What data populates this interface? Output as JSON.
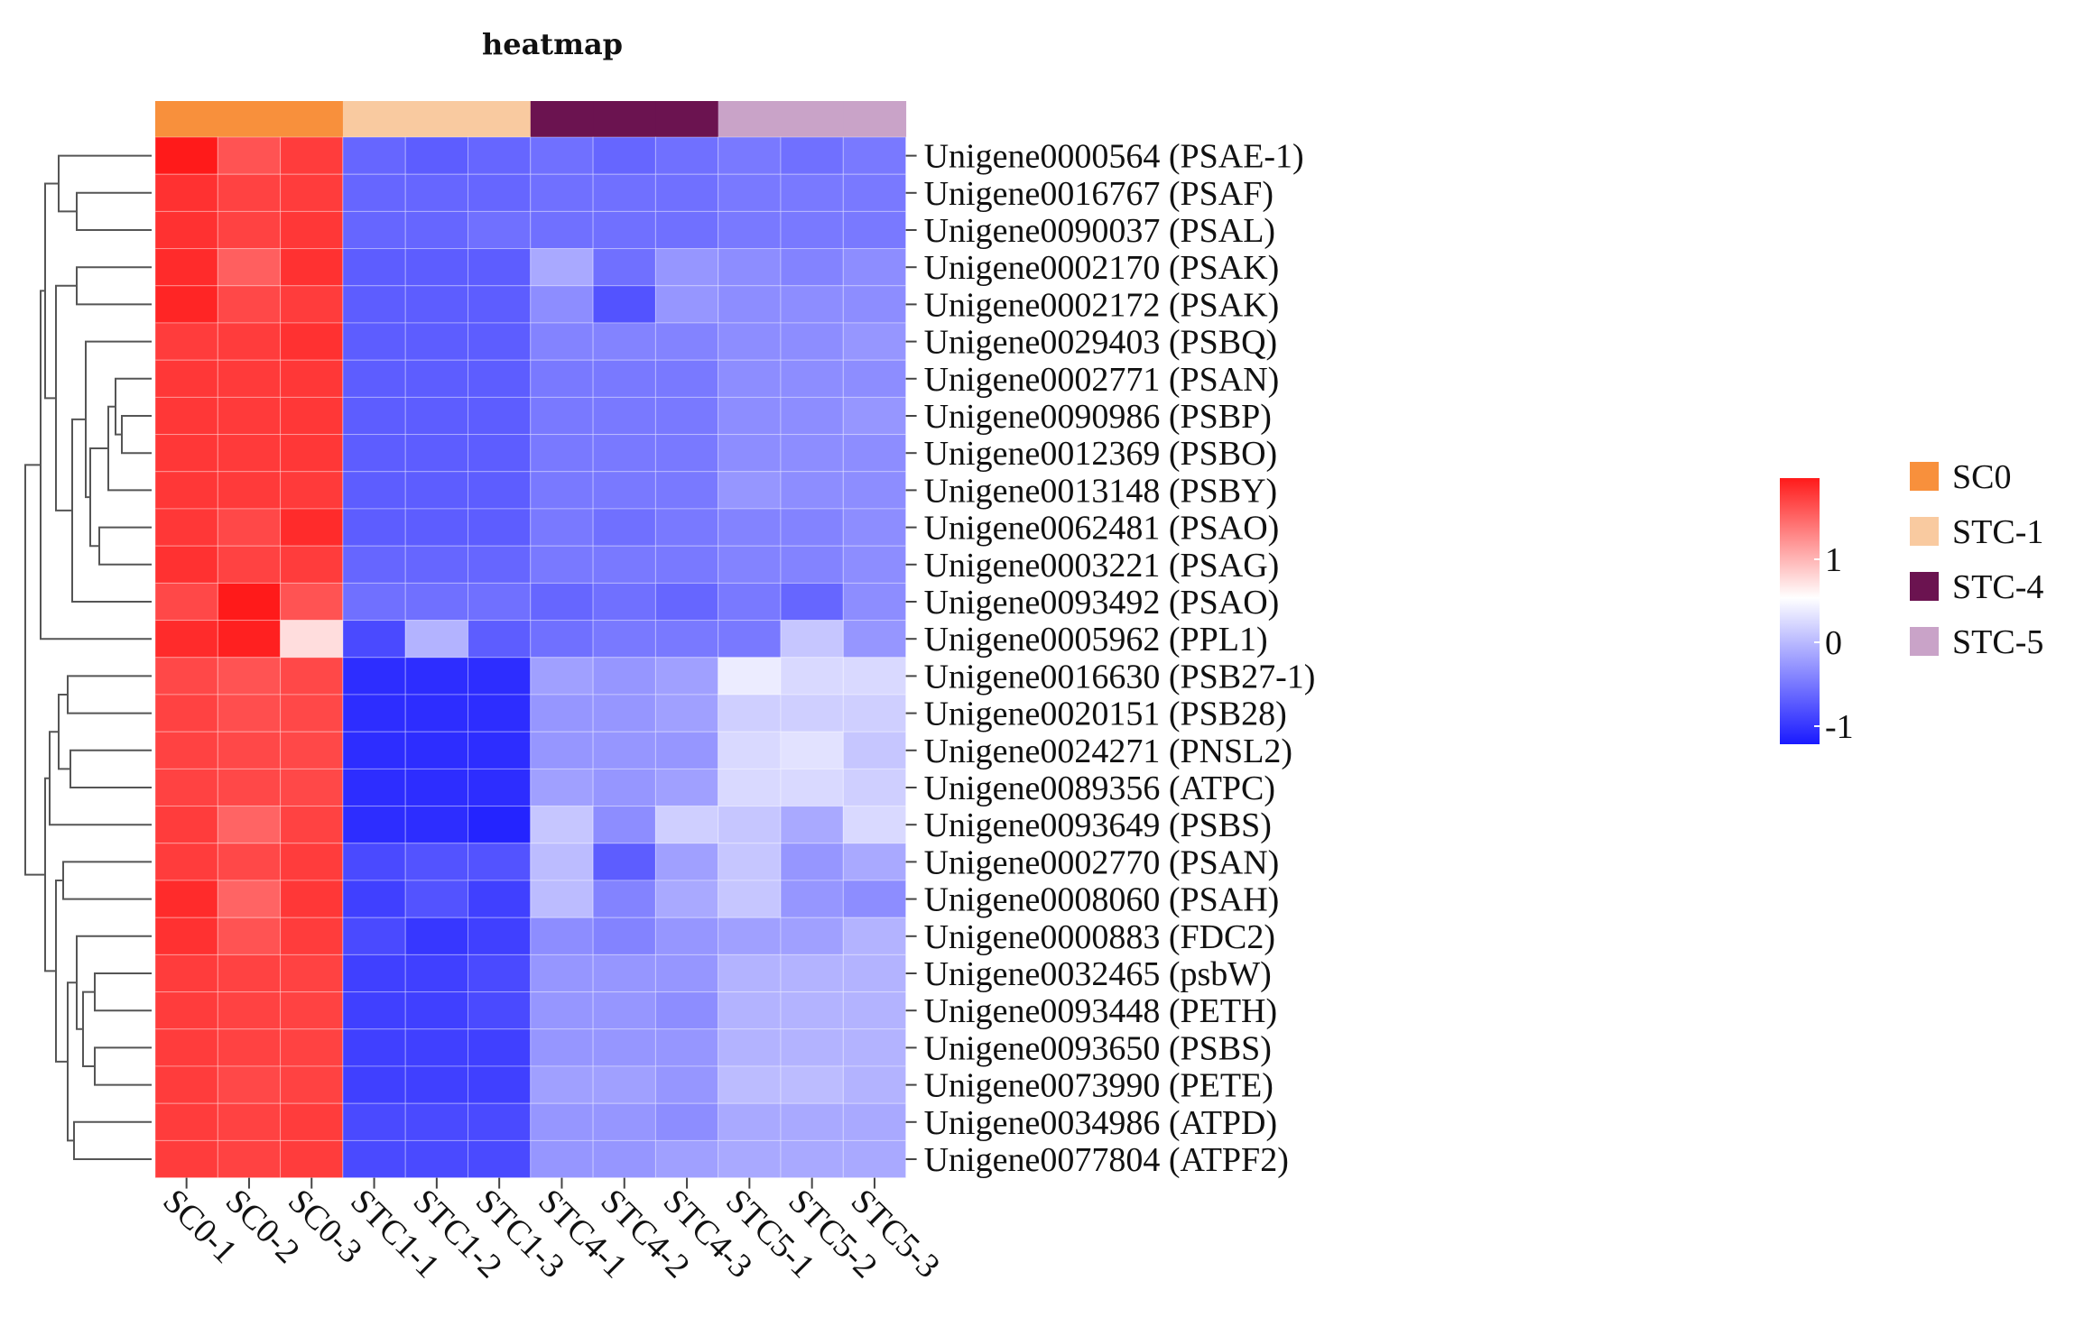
{
  "chart_data": {
    "type": "heatmap",
    "title": "heatmap",
    "columns": [
      "SC0-1",
      "SC0-2",
      "SC0-3",
      "STC1-1",
      "STC1-2",
      "STC1-3",
      "STC4-1",
      "STC4-2",
      "STC4-3",
      "STC5-1",
      "STC5-2",
      "STC5-3"
    ],
    "column_groups": [
      "SC0",
      "SC0",
      "SC0",
      "STC-1",
      "STC-1",
      "STC-1",
      "STC-4",
      "STC-4",
      "STC-4",
      "STC-5",
      "STC-5",
      "STC-5"
    ],
    "rows": [
      "Unigene0000564 (PSAE-1)",
      "Unigene0016767 (PSAF)",
      "Unigene0090037 (PSAL)",
      "Unigene0002170 (PSAK)",
      "Unigene0002172 (PSAK)",
      "Unigene0029403 (PSBQ)",
      "Unigene0002771 (PSAN)",
      "Unigene0090986 (PSBP)",
      "Unigene0012369 (PSBO)",
      "Unigene0013148 (PSBY)",
      "Unigene0062481 (PSAO)",
      "Unigene0003221 (PSAG)",
      "Unigene0093492 (PSAO)",
      "Unigene0005962 (PPL1)",
      "Unigene0016630 (PSB27-1)",
      "Unigene0020151 (PSB28)",
      "Unigene0024271 (PNSL2)",
      "Unigene0089356 (ATPC)",
      "Unigene0093649 (PSBS)",
      "Unigene0002770 (PSAN)",
      "Unigene0008060 (PSAH)",
      "Unigene0000883 (FDC2)",
      "Unigene0032465 (psbW)",
      "Unigene0093448 (PETH)",
      "Unigene0093650 (PSBS)",
      "Unigene0073990 (PETE)",
      "Unigene0034986 (ATPD)",
      "Unigene0077804 (ATPF2)"
    ],
    "values": [
      [
        2.0,
        1.5,
        1.7,
        -0.8,
        -0.85,
        -0.8,
        -0.75,
        -0.8,
        -0.75,
        -0.7,
        -0.75,
        -0.7
      ],
      [
        1.8,
        1.65,
        1.7,
        -0.8,
        -0.8,
        -0.8,
        -0.75,
        -0.75,
        -0.75,
        -0.7,
        -0.7,
        -0.7
      ],
      [
        1.8,
        1.65,
        1.75,
        -0.8,
        -0.8,
        -0.75,
        -0.75,
        -0.75,
        -0.75,
        -0.7,
        -0.7,
        -0.7
      ],
      [
        1.85,
        1.4,
        1.8,
        -0.85,
        -0.85,
        -0.85,
        -0.45,
        -0.75,
        -0.55,
        -0.6,
        -0.65,
        -0.6
      ],
      [
        1.9,
        1.6,
        1.7,
        -0.85,
        -0.85,
        -0.85,
        -0.6,
        -0.9,
        -0.55,
        -0.6,
        -0.6,
        -0.6
      ],
      [
        1.7,
        1.7,
        1.8,
        -0.85,
        -0.85,
        -0.85,
        -0.65,
        -0.65,
        -0.65,
        -0.6,
        -0.6,
        -0.55
      ],
      [
        1.75,
        1.72,
        1.75,
        -0.85,
        -0.85,
        -0.85,
        -0.7,
        -0.7,
        -0.7,
        -0.6,
        -0.6,
        -0.6
      ],
      [
        1.75,
        1.72,
        1.75,
        -0.85,
        -0.85,
        -0.85,
        -0.7,
        -0.7,
        -0.7,
        -0.6,
        -0.6,
        -0.55
      ],
      [
        1.75,
        1.72,
        1.75,
        -0.85,
        -0.85,
        -0.85,
        -0.7,
        -0.7,
        -0.7,
        -0.6,
        -0.6,
        -0.6
      ],
      [
        1.75,
        1.72,
        1.72,
        -0.85,
        -0.85,
        -0.85,
        -0.7,
        -0.7,
        -0.7,
        -0.55,
        -0.6,
        -0.6
      ],
      [
        1.75,
        1.6,
        1.85,
        -0.85,
        -0.85,
        -0.85,
        -0.7,
        -0.75,
        -0.7,
        -0.65,
        -0.65,
        -0.6
      ],
      [
        1.8,
        1.65,
        1.7,
        -0.8,
        -0.8,
        -0.8,
        -0.7,
        -0.7,
        -0.7,
        -0.65,
        -0.65,
        -0.6
      ],
      [
        1.6,
        2.0,
        1.5,
        -0.75,
        -0.75,
        -0.75,
        -0.8,
        -0.75,
        -0.8,
        -0.7,
        -0.8,
        -0.6
      ],
      [
        1.85,
        1.95,
        0.3,
        -0.95,
        -0.4,
        -0.85,
        -0.75,
        -0.7,
        -0.7,
        -0.7,
        -0.3,
        -0.55
      ],
      [
        1.6,
        1.5,
        1.6,
        -1.1,
        -1.1,
        -1.1,
        -0.5,
        -0.55,
        -0.5,
        -0.1,
        -0.2,
        -0.2
      ],
      [
        1.65,
        1.55,
        1.6,
        -1.1,
        -1.1,
        -1.1,
        -0.55,
        -0.55,
        -0.5,
        -0.25,
        -0.25,
        -0.25
      ],
      [
        1.65,
        1.6,
        1.6,
        -1.1,
        -1.1,
        -1.1,
        -0.55,
        -0.55,
        -0.55,
        -0.2,
        -0.15,
        -0.3
      ],
      [
        1.65,
        1.6,
        1.6,
        -1.1,
        -1.1,
        -1.1,
        -0.5,
        -0.55,
        -0.5,
        -0.2,
        -0.2,
        -0.25
      ],
      [
        1.7,
        1.35,
        1.65,
        -1.1,
        -1.1,
        -1.15,
        -0.3,
        -0.6,
        -0.25,
        -0.3,
        -0.45,
        -0.2
      ],
      [
        1.7,
        1.6,
        1.7,
        -0.95,
        -0.9,
        -0.9,
        -0.35,
        -0.85,
        -0.5,
        -0.3,
        -0.55,
        -0.45
      ],
      [
        1.85,
        1.35,
        1.75,
        -1.0,
        -0.9,
        -1.0,
        -0.35,
        -0.65,
        -0.45,
        -0.3,
        -0.55,
        -0.6
      ],
      [
        1.8,
        1.5,
        1.7,
        -0.95,
        -1.05,
        -1.0,
        -0.6,
        -0.65,
        -0.55,
        -0.5,
        -0.5,
        -0.4
      ],
      [
        1.7,
        1.65,
        1.65,
        -1.0,
        -1.0,
        -0.95,
        -0.55,
        -0.55,
        -0.55,
        -0.4,
        -0.4,
        -0.4
      ],
      [
        1.7,
        1.65,
        1.65,
        -1.0,
        -1.0,
        -0.95,
        -0.55,
        -0.55,
        -0.6,
        -0.4,
        -0.4,
        -0.4
      ],
      [
        1.7,
        1.65,
        1.65,
        -1.0,
        -1.0,
        -1.0,
        -0.55,
        -0.55,
        -0.55,
        -0.4,
        -0.4,
        -0.4
      ],
      [
        1.7,
        1.6,
        1.65,
        -1.0,
        -1.0,
        -1.0,
        -0.5,
        -0.5,
        -0.55,
        -0.35,
        -0.35,
        -0.4
      ],
      [
        1.7,
        1.65,
        1.7,
        -0.95,
        -0.95,
        -0.95,
        -0.55,
        -0.55,
        -0.6,
        -0.45,
        -0.45,
        -0.45
      ],
      [
        1.7,
        1.65,
        1.7,
        -0.95,
        -0.95,
        -0.95,
        -0.55,
        -0.55,
        -0.5,
        -0.45,
        -0.45,
        -0.45
      ]
    ],
    "color_scale": {
      "low": "#1a1aff",
      "mid": "#ffffff",
      "high": "#ff1a1a",
      "min": -1.2,
      "max": 2.0
    },
    "colorbar_ticks": [
      "1",
      "0",
      "-1"
    ],
    "group_legend": [
      {
        "label": "SC0",
        "color": "#f8903c"
      },
      {
        "label": "STC-1",
        "color": "#f9caa0"
      },
      {
        "label": "STC-4",
        "color": "#6b1350"
      },
      {
        "label": "STC-5",
        "color": "#c9a3c8"
      }
    ],
    "legend_position": "right"
  }
}
